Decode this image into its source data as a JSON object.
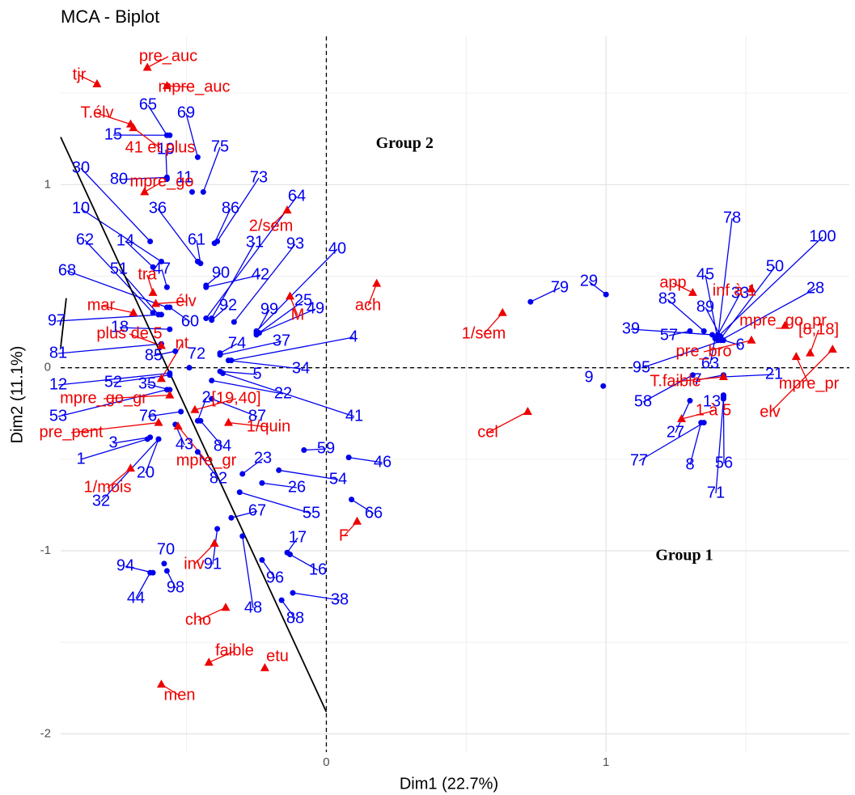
{
  "chart_data": {
    "type": "biplot",
    "title": "MCA - Biplot",
    "x_label": "Dim1 (22.7%)",
    "y_label": "Dim2 (11.1%)",
    "xlim": [
      -0.95,
      1.87
    ],
    "ylim": [
      -2.1,
      1.81
    ],
    "xticks": [
      0,
      1
    ],
    "yticks": [
      -2,
      -1,
      0,
      1
    ],
    "grid": true,
    "hline": 0,
    "vline": 0,
    "annotations": [
      {
        "text": "Group 2",
        "x": 0.28,
        "y": 1.22
      },
      {
        "text": "Group 1",
        "x": 1.28,
        "y": -1.03
      }
    ],
    "lines": [
      {
        "x": [
          -0.95,
          0
        ],
        "y": [
          1.26,
          -1.88
        ],
        "color": "#000000"
      },
      {
        "x": [
          -0.95,
          -0.93
        ],
        "y": [
          0.11,
          0.38
        ],
        "color": "#000000"
      }
    ],
    "series": [
      {
        "color": "#0000ee",
        "marker": "circle",
        "labels": [
          "65",
          "15",
          "69",
          "19",
          "75",
          "30",
          "80",
          "11",
          "73",
          "64",
          "10",
          "36",
          "86",
          "14",
          "62",
          "61",
          "31",
          "93",
          "40",
          "68",
          "51",
          "47",
          "90",
          "42",
          "25",
          "92",
          "99",
          "49",
          "97",
          "60",
          "18",
          "4",
          "74",
          "37",
          "81",
          "85",
          "72",
          "34",
          "5",
          "12",
          "52",
          "35",
          "22",
          "2",
          "41",
          "53",
          "76",
          "87",
          "3",
          "43",
          "84",
          "1",
          "59",
          "23",
          "46",
          "20",
          "82",
          "54",
          "26",
          "32",
          "67",
          "55",
          "66",
          "17",
          "70",
          "91",
          "94",
          "16",
          "96",
          "98",
          "44",
          "38",
          "48",
          "88",
          "79",
          "29",
          "9",
          "78",
          "100",
          "50",
          "45",
          "83",
          "89",
          "33",
          "28",
          "39",
          "57",
          "6",
          "95",
          "63",
          "7",
          "21",
          "58",
          "13",
          "27",
          "77",
          "8",
          "56",
          "71"
        ],
        "x": [
          -0.57,
          -0.56,
          -0.46,
          -0.57,
          -0.44,
          -0.63,
          -0.57,
          -0.48,
          -0.39,
          -0.43,
          -0.59,
          -0.46,
          -0.4,
          -0.62,
          -0.62,
          -0.45,
          -0.41,
          -0.33,
          -0.25,
          -0.57,
          -0.6,
          -0.57,
          -0.43,
          -0.43,
          -0.25,
          -0.41,
          -0.25,
          -0.24,
          -0.59,
          -0.56,
          -0.56,
          -0.34,
          -0.38,
          -0.38,
          -0.59,
          -0.54,
          -0.49,
          -0.35,
          -0.38,
          -0.56,
          -0.56,
          -0.56,
          -0.41,
          -0.46,
          -0.37,
          -0.57,
          -0.52,
          -0.41,
          -0.63,
          -0.54,
          -0.45,
          -0.64,
          -0.08,
          -0.3,
          0.08,
          -0.6,
          -0.46,
          -0.17,
          -0.23,
          -0.6,
          -0.34,
          -0.31,
          0.09,
          -0.14,
          -0.58,
          -0.39,
          -0.62,
          -0.13,
          -0.23,
          -0.57,
          -0.63,
          -0.12,
          -0.3,
          -0.16,
          0.73,
          1.0,
          0.99,
          1.4,
          1.4,
          1.41,
          1.4,
          1.35,
          1.41,
          1.4,
          1.41,
          1.38,
          1.3,
          1.4,
          1.42,
          1.39,
          1.42,
          1.42,
          1.31,
          1.42,
          1.3,
          1.35,
          1.34,
          1.42,
          1.42
        ],
        "y": [
          1.27,
          1.27,
          1.15,
          1.03,
          0.96,
          0.69,
          1.04,
          0.96,
          0.69,
          0.27,
          0.58,
          0.58,
          0.68,
          0.55,
          0.3,
          0.57,
          0.27,
          0.25,
          0.2,
          0.33,
          0.29,
          0.44,
          0.45,
          0.44,
          0.18,
          0.26,
          0.19,
          0.19,
          0.29,
          0.33,
          0.21,
          0.04,
          0.08,
          0.07,
          0.13,
          0.09,
          0.0,
          0.04,
          -0.02,
          -0.03,
          -0.04,
          -0.12,
          -0.07,
          -0.29,
          -0.03,
          -0.12,
          -0.24,
          -0.17,
          -0.38,
          -0.31,
          -0.29,
          -0.39,
          -0.45,
          -0.58,
          -0.49,
          -0.39,
          -0.46,
          -0.56,
          -0.63,
          -0.39,
          -0.82,
          -0.68,
          -0.72,
          -1.01,
          -1.07,
          -0.88,
          -1.12,
          -1.02,
          -1.05,
          -1.11,
          -1.12,
          -1.23,
          -0.92,
          -1.27,
          0.36,
          0.4,
          -0.1,
          0.16,
          0.17,
          0.16,
          0.15,
          0.2,
          0.17,
          0.18,
          0.15,
          0.18,
          0.2,
          0.16,
          0.15,
          0.16,
          -0.04,
          -0.05,
          -0.04,
          -0.15,
          -0.18,
          -0.3,
          -0.3,
          -0.16,
          -0.17
        ]
      },
      {
        "color": "#ee0000",
        "marker": "triangle",
        "labels": [
          "pre_auc",
          "mpre_auc",
          "tjr",
          "T.élv",
          "41 et plus",
          "mpre_go",
          "2/sem",
          "tra",
          "élv",
          "mar",
          "plus de 5",
          "M",
          "ach",
          "1/sem",
          "cel",
          "nt",
          "mpre_go_gr",
          "[19,40]",
          "1/quin",
          "pre_pent",
          "mpre_gr",
          "1/mois",
          "F",
          "inv",
          "cho",
          "faible",
          "etu",
          "men",
          "app",
          "inf à 1",
          "mpre_go_pr",
          "[8,18]",
          "pre_bro",
          "T.faible",
          "mpre_pr",
          "elv",
          "1 à 5"
        ],
        "x": [
          -0.64,
          -0.57,
          -0.82,
          -0.7,
          -0.69,
          -0.65,
          -0.14,
          -0.62,
          -0.61,
          -0.69,
          -0.59,
          -0.13,
          0.18,
          0.63,
          0.72,
          -0.59,
          -0.56,
          -0.47,
          -0.35,
          -0.6,
          -0.53,
          -0.7,
          0.11,
          -0.4,
          -0.36,
          -0.42,
          -0.22,
          -0.59,
          1.31,
          1.52,
          1.64,
          1.73,
          1.52,
          1.42,
          1.68,
          1.81,
          1.27
        ],
        "y": [
          1.64,
          1.54,
          1.55,
          1.33,
          1.31,
          0.96,
          0.86,
          0.41,
          0.35,
          0.3,
          0.12,
          0.39,
          0.46,
          0.3,
          -0.24,
          -0.06,
          -0.15,
          -0.23,
          -0.3,
          -0.3,
          -0.32,
          -0.55,
          -0.84,
          -0.96,
          -1.31,
          -1.61,
          -1.64,
          -1.73,
          0.41,
          0.43,
          0.23,
          0.08,
          0.15,
          -0.05,
          0.06,
          0.1,
          -0.28
        ]
      }
    ]
  }
}
